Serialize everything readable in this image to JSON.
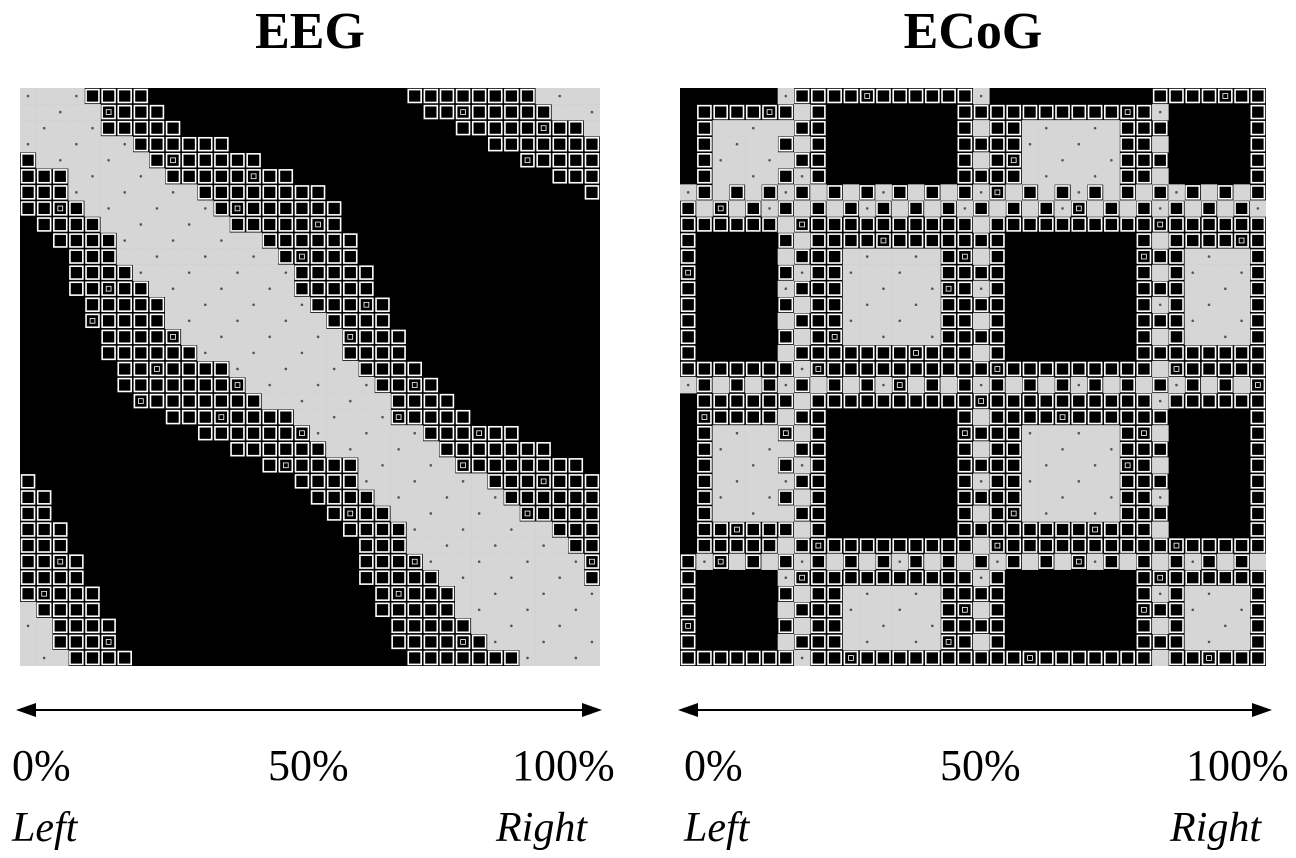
{
  "panels": [
    {
      "title": "EEG",
      "ticks": [
        "0%",
        "50%",
        "100%"
      ],
      "left_label": "Left",
      "right_label": "Right",
      "pattern": "diagonal"
    },
    {
      "title": "ECoG",
      "ticks": [
        "0%",
        "50%",
        "100%"
      ],
      "left_label": "Left",
      "right_label": "Right",
      "pattern": "block"
    }
  ],
  "colors": {
    "background": "#000000",
    "high_similarity": "#d6d6d6",
    "medium_similarity": "#ffffff",
    "low_similarity": "#000000"
  }
}
